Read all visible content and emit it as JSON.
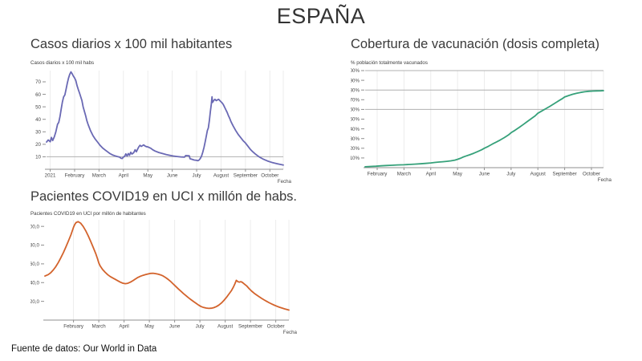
{
  "page": {
    "title": "ESPAÑA",
    "source_note": "Fuente de datos: Our World in Data"
  },
  "colors": {
    "cases_line": "#6a69b4",
    "vaccination_line": "#36a17a",
    "icu_line": "#d3632c",
    "grid_light": "#ececec",
    "grid_strong": "#b0b0b0",
    "axis": "#8f8f8f",
    "tick_label": "#484848"
  },
  "chart_data": [
    {
      "type": "line",
      "title": "Casos diarios x 100 mil habitantes",
      "axis_caption": "Casos diarios x 100 mil habs",
      "xlabel": "Fecha",
      "x_encoding": "months since 2021-01-01 (1 = February 1, 2021)",
      "x_tick_values": [
        0,
        1,
        2,
        3,
        4,
        5,
        6,
        7,
        8,
        9
      ],
      "x_tick_labels": [
        "2021",
        "February",
        "March",
        "April",
        "May",
        "June",
        "July",
        "August",
        "September",
        "October"
      ],
      "y_tick_values": [
        10,
        20,
        30,
        40,
        50,
        60,
        70
      ],
      "y_tick_labels": [
        "10",
        "20",
        "30",
        "40",
        "50",
        "60",
        "70"
      ],
      "xlim": [
        -0.15,
        9.55
      ],
      "ylim": [
        0,
        79
      ],
      "grid": true,
      "h_gridlines": [
        10
      ],
      "x_gridlines": [
        0,
        1,
        2,
        3,
        4,
        5,
        6,
        7,
        8,
        9,
        9.55
      ],
      "line_color": "#6a69b4",
      "points": [
        [
          -0.15,
          21.8
        ],
        [
          -0.08,
          23.5
        ],
        [
          0,
          22
        ],
        [
          0.05,
          25.5
        ],
        [
          0.1,
          23
        ],
        [
          0.17,
          26
        ],
        [
          0.23,
          30
        ],
        [
          0.3,
          36
        ],
        [
          0.35,
          37.5
        ],
        [
          0.4,
          42
        ],
        [
          0.45,
          48
        ],
        [
          0.5,
          54
        ],
        [
          0.55,
          58
        ],
        [
          0.6,
          59.5
        ],
        [
          0.65,
          64
        ],
        [
          0.7,
          69
        ],
        [
          0.75,
          73
        ],
        [
          0.8,
          76
        ],
        [
          0.85,
          78
        ],
        [
          0.9,
          76.5
        ],
        [
          0.95,
          74.5
        ],
        [
          1,
          73
        ],
        [
          1.05,
          71
        ],
        [
          1.1,
          67
        ],
        [
          1.15,
          64
        ],
        [
          1.2,
          61
        ],
        [
          1.3,
          55
        ],
        [
          1.35,
          50
        ],
        [
          1.45,
          43
        ],
        [
          1.5,
          39
        ],
        [
          1.55,
          36
        ],
        [
          1.65,
          31
        ],
        [
          1.75,
          27
        ],
        [
          1.85,
          24
        ],
        [
          1.95,
          21.5
        ],
        [
          2.05,
          19
        ],
        [
          2.15,
          17
        ],
        [
          2.25,
          15.5
        ],
        [
          2.35,
          14
        ],
        [
          2.45,
          12.5
        ],
        [
          2.55,
          11.5
        ],
        [
          2.65,
          10.8
        ],
        [
          2.75,
          10.2
        ],
        [
          2.85,
          9.7
        ],
        [
          2.9,
          8.8
        ],
        [
          2.95,
          8.6
        ],
        [
          3,
          9.8
        ],
        [
          3.05,
          10.3
        ],
        [
          3.1,
          12.3
        ],
        [
          3.15,
          10.6
        ],
        [
          3.2,
          12.6
        ],
        [
          3.25,
          11.2
        ],
        [
          3.3,
          13.6
        ],
        [
          3.35,
          12.2
        ],
        [
          3.42,
          13.2
        ],
        [
          3.48,
          15.6
        ],
        [
          3.53,
          14
        ],
        [
          3.58,
          16
        ],
        [
          3.63,
          18
        ],
        [
          3.68,
          19.2
        ],
        [
          3.73,
          18.3
        ],
        [
          3.78,
          18.9
        ],
        [
          3.83,
          19.5
        ],
        [
          3.88,
          18.7
        ],
        [
          3.94,
          18.1
        ],
        [
          4,
          17.9
        ],
        [
          4.05,
          17.5
        ],
        [
          4.12,
          16.8
        ],
        [
          4.2,
          15.6
        ],
        [
          4.3,
          14.6
        ],
        [
          4.45,
          13.4
        ],
        [
          4.6,
          12.6
        ],
        [
          4.75,
          11.8
        ],
        [
          4.9,
          11.2
        ],
        [
          5.05,
          10.6
        ],
        [
          5.2,
          10.2
        ],
        [
          5.35,
          9.9
        ],
        [
          5.5,
          9.7
        ],
        [
          5.55,
          11
        ],
        [
          5.63,
          10.9
        ],
        [
          5.7,
          10.7
        ],
        [
          5.73,
          8.4
        ],
        [
          5.8,
          8
        ],
        [
          5.9,
          7.4
        ],
        [
          6,
          7.1
        ],
        [
          6.05,
          6.9
        ],
        [
          6.1,
          7.4
        ],
        [
          6.15,
          8.6
        ],
        [
          6.2,
          10.5
        ],
        [
          6.25,
          13.5
        ],
        [
          6.3,
          17.5
        ],
        [
          6.35,
          22
        ],
        [
          6.4,
          27
        ],
        [
          6.44,
          31
        ],
        [
          6.48,
          33
        ],
        [
          6.52,
          39
        ],
        [
          6.56,
          46
        ],
        [
          6.6,
          52
        ],
        [
          6.63,
          58
        ],
        [
          6.65,
          53.5
        ],
        [
          6.7,
          55
        ],
        [
          6.75,
          56
        ],
        [
          6.8,
          55
        ],
        [
          6.85,
          55.5
        ],
        [
          6.9,
          56
        ],
        [
          6.95,
          55
        ],
        [
          7,
          54
        ],
        [
          7.05,
          53
        ],
        [
          7.1,
          51.5
        ],
        [
          7.15,
          49.5
        ],
        [
          7.2,
          47.5
        ],
        [
          7.25,
          45.5
        ],
        [
          7.3,
          43
        ],
        [
          7.35,
          41
        ],
        [
          7.4,
          38.5
        ],
        [
          7.45,
          36.5
        ],
        [
          7.5,
          34.5
        ],
        [
          7.6,
          31
        ],
        [
          7.7,
          28
        ],
        [
          7.8,
          25.5
        ],
        [
          7.9,
          23
        ],
        [
          8,
          21
        ],
        [
          8.1,
          18.5
        ],
        [
          8.2,
          16
        ],
        [
          8.3,
          14
        ],
        [
          8.4,
          12.3
        ],
        [
          8.5,
          10.8
        ],
        [
          8.6,
          9.5
        ],
        [
          8.7,
          8.4
        ],
        [
          8.8,
          7.5
        ],
        [
          8.9,
          6.7
        ],
        [
          9,
          6
        ],
        [
          9.1,
          5.4
        ],
        [
          9.2,
          4.9
        ],
        [
          9.3,
          4.4
        ],
        [
          9.4,
          4
        ],
        [
          9.5,
          3.6
        ],
        [
          9.55,
          3.4
        ]
      ]
    },
    {
      "type": "line",
      "title": "Cobertura de vacunación (dosis completa)",
      "axis_caption": "% población totalmente vacunados",
      "xlabel": "Fecha",
      "x_encoding": "months since 2021-01-01 (1 = February 1, 2021)",
      "x_tick_values": [
        1,
        2,
        3,
        4,
        5,
        6,
        7,
        8,
        9
      ],
      "x_tick_labels": [
        "February",
        "March",
        "April",
        "May",
        "June",
        "July",
        "August",
        "September",
        "October"
      ],
      "y_tick_values": [
        10,
        20,
        30,
        40,
        50,
        60,
        70,
        80,
        90,
        100
      ],
      "y_tick_labels": [
        "10%",
        "20%",
        "30%",
        "40%",
        "50%",
        "60%",
        "70%",
        "80%",
        "90%",
        "100%"
      ],
      "xlim": [
        0.55,
        9.45
      ],
      "ylim": [
        0,
        100
      ],
      "grid": true,
      "h_gridlines": [
        60,
        80,
        100
      ],
      "x_gridlines": [
        1,
        2,
        3,
        4,
        5,
        6,
        7,
        8,
        9,
        9.45
      ],
      "line_color": "#36a17a",
      "points": [
        [
          0.55,
          0.9
        ],
        [
          0.75,
          1.2
        ],
        [
          0.95,
          1.5
        ],
        [
          1.15,
          1.9
        ],
        [
          1.35,
          2.2
        ],
        [
          1.55,
          2.5
        ],
        [
          1.75,
          2.8
        ],
        [
          2,
          3
        ],
        [
          2.2,
          3.3
        ],
        [
          2.4,
          3.6
        ],
        [
          2.6,
          4
        ],
        [
          2.8,
          4.4
        ],
        [
          3,
          4.9
        ],
        [
          3.15,
          5.4
        ],
        [
          3.3,
          5.8
        ],
        [
          3.45,
          6.1
        ],
        [
          3.6,
          6.5
        ],
        [
          3.75,
          7
        ],
        [
          3.9,
          7.8
        ],
        [
          4,
          8.6
        ],
        [
          4.1,
          9.6
        ],
        [
          4.2,
          10.8
        ],
        [
          4.3,
          11.8
        ],
        [
          4.45,
          13.2
        ],
        [
          4.6,
          14.8
        ],
        [
          4.75,
          16.6
        ],
        [
          4.9,
          18.4
        ],
        [
          5,
          20
        ],
        [
          5.15,
          22
        ],
        [
          5.3,
          24.3
        ],
        [
          5.45,
          26.4
        ],
        [
          5.6,
          28.6
        ],
        [
          5.75,
          31
        ],
        [
          5.9,
          33.6
        ],
        [
          6,
          36
        ],
        [
          6.15,
          38.6
        ],
        [
          6.3,
          41.4
        ],
        [
          6.45,
          44.4
        ],
        [
          6.6,
          47.4
        ],
        [
          6.75,
          50.4
        ],
        [
          6.9,
          53.4
        ],
        [
          7,
          56
        ],
        [
          7.15,
          58.4
        ],
        [
          7.3,
          60.8
        ],
        [
          7.45,
          63.2
        ],
        [
          7.6,
          65.8
        ],
        [
          7.75,
          68.4
        ],
        [
          7.9,
          70.9
        ],
        [
          8,
          72.8
        ],
        [
          8.15,
          74.3
        ],
        [
          8.3,
          75.6
        ],
        [
          8.45,
          76.7
        ],
        [
          8.6,
          77.5
        ],
        [
          8.75,
          78.2
        ],
        [
          8.9,
          78.7
        ],
        [
          9.05,
          78.9
        ],
        [
          9.2,
          79.1
        ],
        [
          9.35,
          79.2
        ],
        [
          9.45,
          79.3
        ]
      ]
    },
    {
      "type": "line",
      "title": "Pacientes COVID19 en UCI x millón de habs.",
      "axis_caption": "Pacientes COVID19 en UCI por millón de habitantes",
      "xlabel": "Fecha",
      "x_encoding": "months since 2021-01-01 (1 = February 1, 2021)",
      "x_tick_values": [
        1,
        2,
        3,
        4,
        5,
        6,
        7,
        8,
        9
      ],
      "x_tick_labels": [
        "February",
        "March",
        "April",
        "May",
        "June",
        "July",
        "August",
        "September",
        "October"
      ],
      "y_tick_values": [
        20,
        40,
        60,
        80,
        100
      ],
      "y_tick_labels": [
        "20,0",
        "40,0",
        "60,0",
        "80,0",
        "100,0"
      ],
      "xlim": [
        -0.13,
        9.52
      ],
      "ylim": [
        0,
        107
      ],
      "grid": true,
      "h_gridlines": [],
      "x_gridlines": [
        1,
        2,
        3,
        4,
        5,
        6,
        7,
        8,
        9,
        9.52
      ],
      "line_color": "#d3632c",
      "points": [
        [
          -0.13,
          47
        ],
        [
          0,
          48.5
        ],
        [
          0.1,
          50.5
        ],
        [
          0.2,
          53.5
        ],
        [
          0.3,
          57
        ],
        [
          0.4,
          61.5
        ],
        [
          0.5,
          66.5
        ],
        [
          0.6,
          72
        ],
        [
          0.7,
          78
        ],
        [
          0.8,
          84.5
        ],
        [
          0.9,
          91
        ],
        [
          0.95,
          95
        ],
        [
          1,
          99
        ],
        [
          1.05,
          102
        ],
        [
          1.1,
          104
        ],
        [
          1.18,
          105
        ],
        [
          1.28,
          103.5
        ],
        [
          1.38,
          100
        ],
        [
          1.48,
          95.5
        ],
        [
          1.58,
          90
        ],
        [
          1.68,
          84
        ],
        [
          1.78,
          77.5
        ],
        [
          1.88,
          71
        ],
        [
          1.95,
          65.5
        ],
        [
          2,
          61
        ],
        [
          2.05,
          58
        ],
        [
          2.15,
          54
        ],
        [
          2.25,
          51
        ],
        [
          2.35,
          48.5
        ],
        [
          2.45,
          46.5
        ],
        [
          2.55,
          45
        ],
        [
          2.65,
          43.5
        ],
        [
          2.75,
          42
        ],
        [
          2.85,
          40.5
        ],
        [
          2.95,
          39.4
        ],
        [
          3.05,
          38.9
        ],
        [
          3.15,
          39.3
        ],
        [
          3.25,
          40.5
        ],
        [
          3.35,
          42
        ],
        [
          3.45,
          43.8
        ],
        [
          3.55,
          45.5
        ],
        [
          3.65,
          46.8
        ],
        [
          3.75,
          47.8
        ],
        [
          3.85,
          48.5
        ],
        [
          3.95,
          49.2
        ],
        [
          4.05,
          49.8
        ],
        [
          4.15,
          50
        ],
        [
          4.25,
          49.6
        ],
        [
          4.35,
          49
        ],
        [
          4.45,
          48.2
        ],
        [
          4.55,
          47
        ],
        [
          4.65,
          45.3
        ],
        [
          4.75,
          43.3
        ],
        [
          4.85,
          41
        ],
        [
          4.95,
          38.4
        ],
        [
          5.05,
          35.8
        ],
        [
          5.15,
          33.2
        ],
        [
          5.25,
          30.7
        ],
        [
          5.35,
          28.3
        ],
        [
          5.45,
          26
        ],
        [
          5.55,
          23.8
        ],
        [
          5.65,
          21.7
        ],
        [
          5.75,
          19.8
        ],
        [
          5.85,
          17.9
        ],
        [
          5.95,
          16
        ],
        [
          6.05,
          14.4
        ],
        [
          6.15,
          13.4
        ],
        [
          6.25,
          12.8
        ],
        [
          6.35,
          12.5
        ],
        [
          6.45,
          12.7
        ],
        [
          6.55,
          13.3
        ],
        [
          6.65,
          14.4
        ],
        [
          6.75,
          16
        ],
        [
          6.85,
          18.2
        ],
        [
          6.95,
          21
        ],
        [
          7.05,
          24.2
        ],
        [
          7.15,
          27.8
        ],
        [
          7.25,
          31.6
        ],
        [
          7.32,
          35
        ],
        [
          7.38,
          38.5
        ],
        [
          7.44,
          42.5
        ],
        [
          7.5,
          41
        ],
        [
          7.56,
          40.5
        ],
        [
          7.62,
          41
        ],
        [
          7.68,
          40.2
        ],
        [
          7.75,
          38.7
        ],
        [
          7.85,
          36.5
        ],
        [
          7.95,
          33.5
        ],
        [
          8.05,
          30.8
        ],
        [
          8.15,
          28.6
        ],
        [
          8.25,
          26.6
        ],
        [
          8.35,
          24.8
        ],
        [
          8.45,
          23
        ],
        [
          8.55,
          21.4
        ],
        [
          8.65,
          19.9
        ],
        [
          8.75,
          18.4
        ],
        [
          8.85,
          17
        ],
        [
          8.95,
          15.8
        ],
        [
          9.05,
          14.7
        ],
        [
          9.15,
          13.7
        ],
        [
          9.25,
          12.8
        ],
        [
          9.35,
          12
        ],
        [
          9.45,
          11.2
        ],
        [
          9.52,
          10.7
        ]
      ]
    }
  ]
}
